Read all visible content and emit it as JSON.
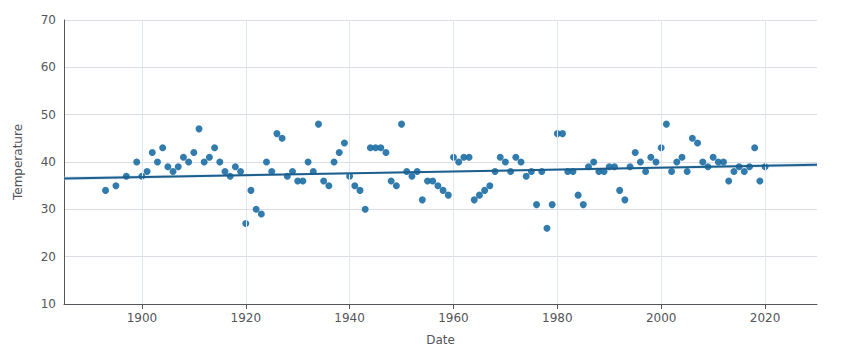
{
  "chart_data": {
    "type": "scatter",
    "xlabel": "Date",
    "ylabel": "Temperature",
    "xlim": [
      1885,
      2030
    ],
    "ylim": [
      10,
      70
    ],
    "xticks": [
      1900,
      1920,
      1940,
      1960,
      1980,
      2000,
      2020
    ],
    "yticks": [
      10,
      20,
      30,
      40,
      50,
      60,
      70
    ],
    "grid": true,
    "series": [
      {
        "type": "scatter",
        "color": "#1c6ea4",
        "x": [
          1893,
          1895,
          1897,
          1899,
          1900,
          1901,
          1902,
          1903,
          1904,
          1905,
          1906,
          1907,
          1908,
          1909,
          1910,
          1911,
          1912,
          1913,
          1914,
          1915,
          1916,
          1917,
          1918,
          1919,
          1920,
          1921,
          1922,
          1923,
          1924,
          1925,
          1926,
          1927,
          1928,
          1929,
          1930,
          1931,
          1932,
          1933,
          1934,
          1935,
          1936,
          1937,
          1938,
          1939,
          1940,
          1941,
          1942,
          1943,
          1944,
          1945,
          1946,
          1947,
          1948,
          1949,
          1950,
          1951,
          1952,
          1953,
          1954,
          1955,
          1956,
          1957,
          1958,
          1959,
          1960,
          1961,
          1962,
          1963,
          1964,
          1965,
          1966,
          1967,
          1968,
          1969,
          1970,
          1971,
          1972,
          1973,
          1974,
          1975,
          1976,
          1977,
          1978,
          1979,
          1980,
          1981,
          1982,
          1983,
          1984,
          1985,
          1986,
          1987,
          1988,
          1989,
          1990,
          1991,
          1992,
          1993,
          1994,
          1995,
          1996,
          1997,
          1998,
          1999,
          2000,
          2001,
          2002,
          2003,
          2004,
          2005,
          2006,
          2007,
          2008,
          2009,
          2010,
          2011,
          2012,
          2013,
          2014,
          2015,
          2016,
          2017,
          2018,
          2019,
          2020
        ],
        "values": [
          34,
          35,
          37,
          40,
          37,
          38,
          42,
          40,
          43,
          39,
          38,
          39,
          41,
          40,
          42,
          47,
          40,
          41,
          43,
          40,
          38,
          37,
          39,
          38,
          27,
          34,
          30,
          29,
          40,
          38,
          46,
          45,
          37,
          38,
          36,
          36,
          40,
          38,
          48,
          36,
          35,
          40,
          42,
          44,
          37,
          35,
          34,
          30,
          43,
          43,
          43,
          42,
          36,
          35,
          48,
          38,
          37,
          38,
          32,
          36,
          36,
          35,
          34,
          33,
          41,
          40,
          41,
          41,
          32,
          33,
          34,
          35,
          38,
          41,
          40,
          38,
          41,
          40,
          37,
          38,
          31,
          38,
          26,
          31,
          46,
          46,
          38,
          38,
          33,
          31,
          39,
          40,
          38,
          38,
          39,
          39,
          34,
          32,
          39,
          42,
          40,
          38,
          41,
          40,
          43,
          48,
          38,
          40,
          41,
          38,
          45,
          44,
          40,
          39,
          41,
          40,
          40,
          36,
          38,
          39,
          38,
          39,
          43,
          36,
          39
        ]
      },
      {
        "type": "line",
        "color": "#1c5e8c",
        "x": [
          1885,
          2030
        ],
        "values": [
          36.5,
          39.4
        ]
      },
      {
        "type": "band",
        "color": "#b8d4e8",
        "x": [
          1885,
          1895,
          1905,
          1915,
          1925,
          1935,
          1945,
          1955,
          1965,
          1975,
          1985,
          1995,
          2005,
          2015,
          2025,
          2030
        ],
        "lower": [
          36.08,
          36.33,
          36.57,
          36.81,
          37.05,
          37.28,
          37.5,
          37.71,
          37.91,
          38.09,
          38.27,
          38.43,
          38.59,
          38.75,
          38.91,
          38.98
        ],
        "upper": [
          36.92,
          37.07,
          37.23,
          37.39,
          37.55,
          37.72,
          37.9,
          38.09,
          38.29,
          38.51,
          38.73,
          38.97,
          39.21,
          39.45,
          39.69,
          39.82
        ]
      }
    ]
  }
}
